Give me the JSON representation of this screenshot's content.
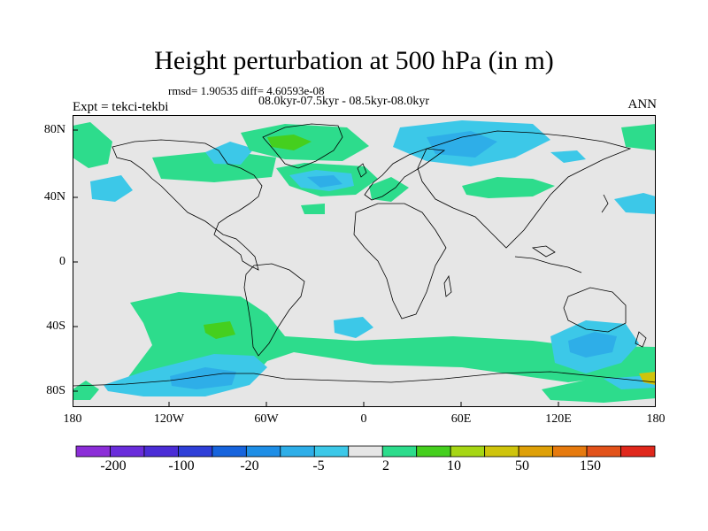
{
  "header": {
    "title": "Height perturbation at 500 hPa (in m)",
    "rmsd_line": "rmsd= 1.90535 diff= 4.60593e-08",
    "periods": "08.0kyr-07.5kyr - 08.5kyr-08.0kyr",
    "experiment": "Expt = tekci-tekbi",
    "season": "ANN"
  },
  "map": {
    "projection": "cylindrical equidistant",
    "lon_range": [
      -180,
      180
    ],
    "lat_range": [
      -90,
      90
    ],
    "lat_tick_labels": [
      "80N",
      "40N",
      "0",
      "40S",
      "80S"
    ],
    "lon_tick_labels": [
      "180",
      "120W",
      "60W",
      "0",
      "60E",
      "120E",
      "180"
    ],
    "background_color": "#e6e6e6",
    "coastline_color": "#000000"
  },
  "colorbar": {
    "colors": [
      "#8c2ed8",
      "#6a2ddb",
      "#4b2dd6",
      "#2f3fd8",
      "#1764dd",
      "#1e8ee6",
      "#2eaee8",
      "#3cc8e8",
      "#e6e6e6",
      "#2ddc8c",
      "#45cf1e",
      "#a6d614",
      "#cfc40c",
      "#dea008",
      "#e67a0e",
      "#e2521a",
      "#e0281c"
    ],
    "labels": [
      "-200",
      "-100",
      "-20",
      "-5",
      "2",
      "10",
      "50",
      "150"
    ]
  },
  "shading_colors": {
    "light_blue": "#3cc8e8",
    "mid_blue": "#2eaee8",
    "green": "#2ddc8c",
    "bright_green": "#45cf1e"
  }
}
